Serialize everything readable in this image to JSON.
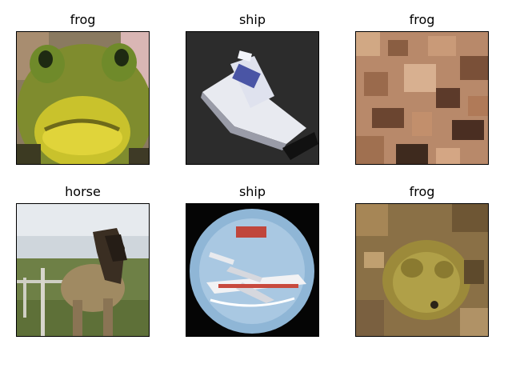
{
  "figure": {
    "panels": [
      {
        "title": "frog"
      },
      {
        "title": "ship"
      },
      {
        "title": "frog"
      },
      {
        "title": "horse"
      },
      {
        "title": "ship"
      },
      {
        "title": "frog"
      }
    ]
  },
  "colors": {
    "background": "#ffffff",
    "border": "#000000"
  }
}
